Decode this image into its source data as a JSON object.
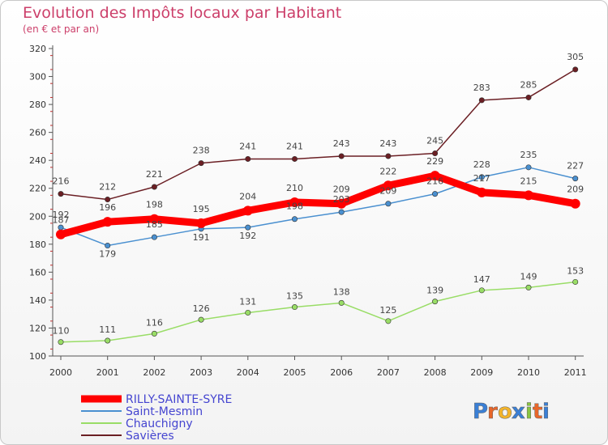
{
  "chart_data": {
    "type": "line",
    "title": "Evolution des Impôts locaux par Habitant",
    "subtitle": "(en € et par an)",
    "xlabel": "",
    "ylabel": "",
    "categories": [
      "2000",
      "2001",
      "2002",
      "2003",
      "2004",
      "2005",
      "2006",
      "2007",
      "2008",
      "2009",
      "2010",
      "2011"
    ],
    "ylim": [
      100,
      320
    ],
    "yticks": [
      100,
      120,
      140,
      160,
      180,
      200,
      220,
      240,
      260,
      280,
      300,
      320
    ],
    "grid": false,
    "legend_position": "bottom-left",
    "series": [
      {
        "name": "Savières",
        "color": "#6b1f24",
        "values": [
          216,
          212,
          221,
          238,
          241,
          241,
          243,
          243,
          245,
          283,
          285,
          305
        ]
      },
      {
        "name": "Chauchigny",
        "color": "#99dd66",
        "values": [
          110,
          111,
          116,
          126,
          131,
          135,
          138,
          125,
          139,
          147,
          149,
          153
        ]
      },
      {
        "name": "Saint-Mesmin",
        "color": "#4a90d0",
        "values": [
          192,
          179,
          185,
          191,
          192,
          198,
          203,
          209,
          216,
          228,
          235,
          227
        ]
      },
      {
        "name": "RILLY-SAINTE-SYRE",
        "color": "#ff0000",
        "values": [
          187,
          196,
          198,
          195,
          204,
          210,
          209,
          222,
          229,
          217,
          215,
          209
        ]
      }
    ],
    "legend_order": [
      "RILLY-SAINTE-SYRE",
      "Saint-Mesmin",
      "Chauchigny",
      "Savières"
    ]
  },
  "brand": {
    "name": "Proxiti",
    "letters": [
      "P",
      "r",
      "o",
      "x",
      "i",
      "t",
      "i"
    ],
    "letter_colors": [
      "#3a7fd5",
      "#e8662a",
      "#f3b42a",
      "#3a7fd5",
      "#89c540",
      "#e8662a",
      "#3a7fd5"
    ]
  },
  "colors": {
    "title": "#cc3f6a",
    "legend_text": "#4545d0"
  }
}
